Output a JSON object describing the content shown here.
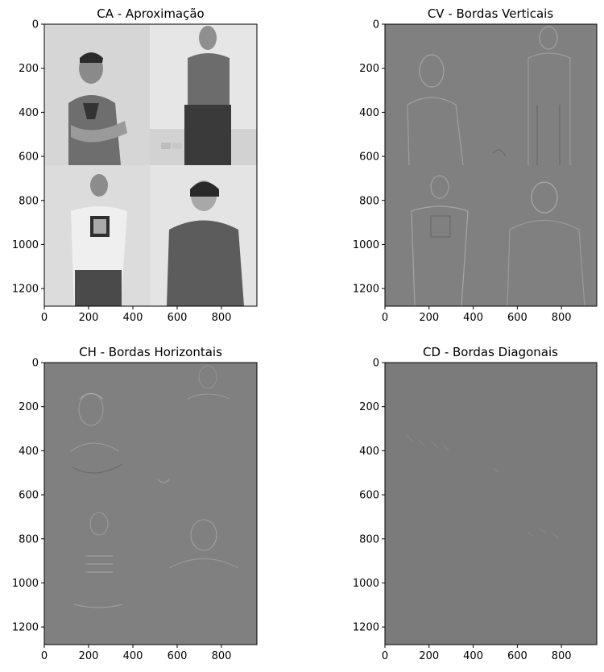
{
  "chart_data": [
    {
      "type": "image",
      "title": "CA - Aproximação",
      "content": "grayscale approximation subband of a 2x2 photo collage: four people standing against light walls",
      "xlim": [
        0,
        960
      ],
      "ylim": [
        1280,
        0
      ],
      "xticks": [
        0,
        200,
        400,
        600,
        800
      ],
      "yticks": [
        0,
        200,
        400,
        600,
        800,
        1000,
        1200
      ],
      "colormap": "gray"
    },
    {
      "type": "image",
      "title": "CV - Bordas Verticais",
      "content": "vertical-detail wavelet coefficients: faint embossed vertical edges of the four figures on mid-gray",
      "xlim": [
        0,
        960
      ],
      "ylim": [
        1280,
        0
      ],
      "xticks": [
        0,
        200,
        400,
        600,
        800
      ],
      "yticks": [
        0,
        200,
        400,
        600,
        800,
        1000,
        1200
      ],
      "colormap": "gray"
    },
    {
      "type": "image",
      "title": "CH - Bordas Horizontais",
      "content": "horizontal-detail wavelet coefficients: faint embossed horizontal edges of the four figures on mid-gray",
      "xlim": [
        0,
        960
      ],
      "ylim": [
        1280,
        0
      ],
      "xticks": [
        0,
        200,
        400,
        600,
        800
      ],
      "yticks": [
        0,
        200,
        400,
        600,
        800,
        1000,
        1200
      ],
      "colormap": "gray"
    },
    {
      "type": "image",
      "title": "CD - Bordas Diagonais",
      "content": "diagonal-detail wavelet coefficients: almost uniform mid-gray with very faint texture",
      "xlim": [
        0,
        960
      ],
      "ylim": [
        1280,
        0
      ],
      "xticks": [
        0,
        200,
        400,
        600,
        800
      ],
      "yticks": [
        0,
        200,
        400,
        600,
        800,
        1000,
        1200
      ],
      "colormap": "gray"
    }
  ],
  "colors": {
    "ca_wall": "#d9d9d9",
    "ca_wall_right": "#e8e8e8",
    "ca_shirt": "#6f6f6f",
    "ca_dark": "#3a3a3a",
    "detail_bg": "#808080",
    "detail_bg_cd": "#7a7a7a",
    "edge_light": "#a6a6a6",
    "edge_dark": "#5e5e5e"
  }
}
